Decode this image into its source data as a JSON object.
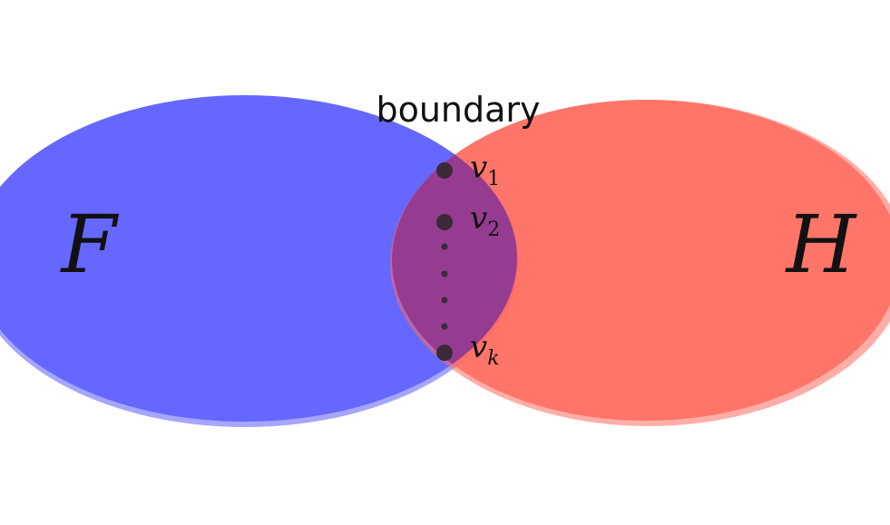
{
  "diagram": {
    "sets": [
      {
        "id": "F",
        "label": "F",
        "color": "#5a5cff"
      },
      {
        "id": "H",
        "label": "H",
        "color": "#ff6b5e"
      }
    ],
    "intersection": {
      "label": "boundary",
      "color": "#8f3a92"
    },
    "vertices": [
      {
        "base": "v",
        "subscript": "1"
      },
      {
        "base": "v",
        "subscript": "2"
      },
      {
        "base": "v",
        "subscript": "k"
      }
    ],
    "ellipsis": "vertical-dots"
  }
}
